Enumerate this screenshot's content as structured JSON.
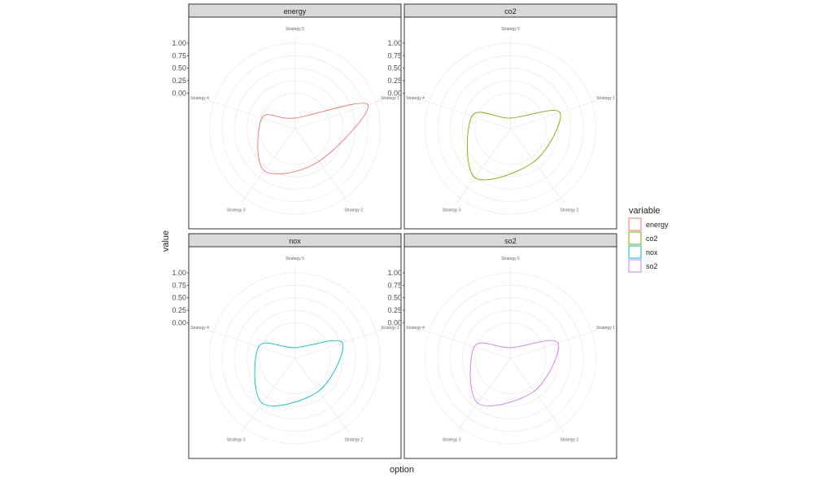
{
  "chart_data": {
    "type": "radar",
    "xlabel": "option",
    "ylabel": "value",
    "categories": [
      "Strategy 1",
      "Strategy 2",
      "Strategy 3",
      "Strategy 4",
      "Strategy 5"
    ],
    "radial_ticks": [
      "1.00",
      "0.75",
      "0.50",
      "0.25",
      "0.00"
    ],
    "rlim": [
      -0.5,
      1.0
    ],
    "grid": true,
    "legend": {
      "title": "variable",
      "position": "right"
    },
    "series": [
      {
        "name": "energy",
        "color": "#F8766D",
        "values": [
          0.83,
          0.1,
          0.33,
          -0.02,
          -0.5
        ]
      },
      {
        "name": "co2",
        "color": "#7CAE00",
        "values": [
          0.33,
          0.1,
          0.5,
          0.1,
          -0.5
        ]
      },
      {
        "name": "nox",
        "color": "#00BFC4",
        "values": [
          0.29,
          0.1,
          0.4,
          0.05,
          -0.5
        ]
      },
      {
        "name": "so2",
        "color": "#C77CFF",
        "values": [
          0.29,
          0.1,
          0.4,
          0.05,
          -0.5
        ]
      }
    ]
  }
}
